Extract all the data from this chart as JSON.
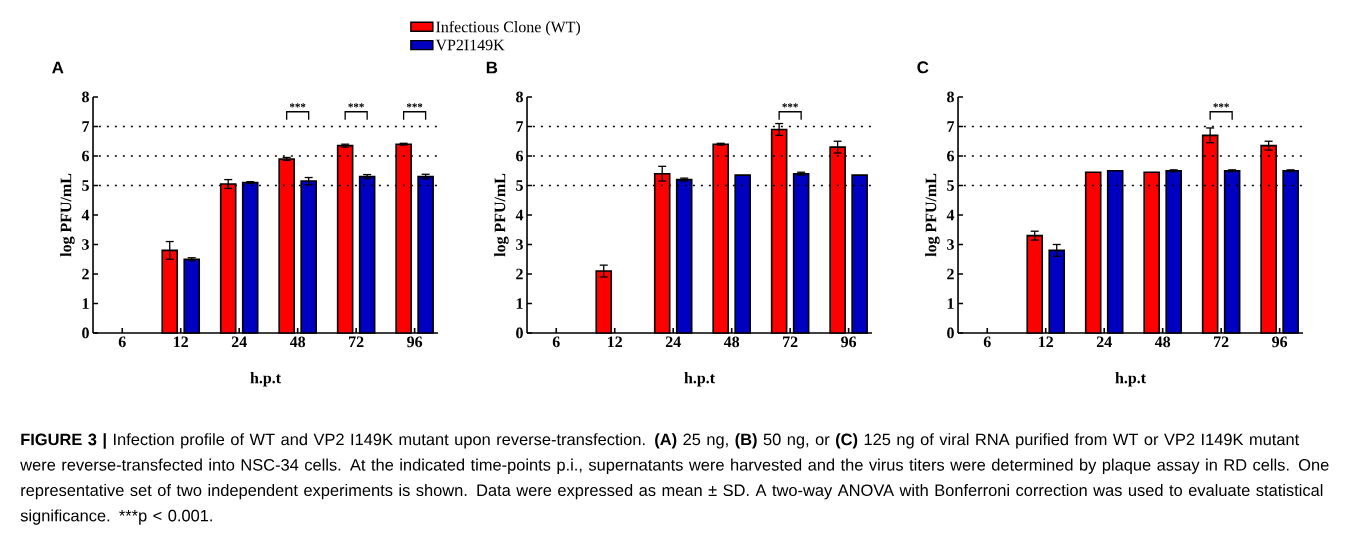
{
  "chart_data": [
    {
      "type": "bar",
      "title": "A",
      "xlabel": "h.p.t",
      "ylabel": "log PFU/mL",
      "categories": [
        "6",
        "12",
        "24",
        "48",
        "72",
        "96"
      ],
      "ylim": [
        0,
        8
      ],
      "yticks": [
        0,
        1,
        2,
        3,
        4,
        5,
        6,
        7,
        8
      ],
      "legend": "top",
      "series": [
        {
          "name": "Infectious Clone (WT)",
          "color": "#ff0000",
          "values": [
            null,
            2.8,
            5.05,
            5.9,
            6.35,
            6.4
          ],
          "errors": [
            null,
            0.3,
            0.15,
            0.05,
            0.05,
            0.03
          ]
        },
        {
          "name": "VP2I149K",
          "color": "#0000c0",
          "values": [
            null,
            2.5,
            5.1,
            5.15,
            5.3,
            5.3
          ],
          "errors": [
            null,
            0.05,
            0.03,
            0.12,
            0.07,
            0.08
          ]
        }
      ],
      "ref_lines": [
        {
          "axis": "y",
          "value": 5,
          "line_style": "dotted"
        },
        {
          "axis": "y",
          "value": 6,
          "line_style": "dotted"
        },
        {
          "axis": "y",
          "value": 7,
          "line_style": "dotted"
        }
      ],
      "annotations": [
        "***",
        "***",
        "***"
      ]
    },
    {
      "type": "bar",
      "title": "B",
      "xlabel": "h.p.t",
      "ylabel": "log PFU/mL",
      "categories": [
        "6",
        "12",
        "24",
        "48",
        "72",
        "96"
      ],
      "ylim": [
        0,
        8
      ],
      "yticks": [
        0,
        1,
        2,
        3,
        4,
        5,
        6,
        7,
        8
      ],
      "series": [
        {
          "color": "#ff0000",
          "values": [
            null,
            2.1,
            5.4,
            6.4,
            6.9,
            6.3
          ],
          "errors": [
            null,
            0.2,
            0.25,
            0.03,
            0.2,
            0.2
          ]
        },
        {
          "color": "#0000c0",
          "values": [
            null,
            null,
            5.2,
            5.35,
            5.4,
            5.35
          ],
          "errors": [
            null,
            null,
            0.05,
            null,
            0.05,
            null
          ]
        }
      ],
      "ref_lines": [
        {
          "axis": "y",
          "value": 5,
          "line_style": "dotted"
        },
        {
          "axis": "y",
          "value": 6,
          "line_style": "dotted"
        },
        {
          "axis": "y",
          "value": 7,
          "line_style": "dotted"
        }
      ],
      "annotations": [
        "***"
      ]
    },
    {
      "type": "bar",
      "title": "C",
      "xlabel": "h.p.t",
      "ylabel": "log PFU/mL",
      "categories": [
        "6",
        "12",
        "24",
        "48",
        "72",
        "96"
      ],
      "ylim": [
        0,
        8
      ],
      "yticks": [
        0,
        1,
        2,
        3,
        4,
        5,
        6,
        7,
        8
      ],
      "series": [
        {
          "color": "#ff0000",
          "values": [
            null,
            3.3,
            5.45,
            5.45,
            6.7,
            6.35
          ],
          "errors": [
            null,
            0.15,
            null,
            null,
            0.25,
            0.15
          ]
        },
        {
          "color": "#0000c0",
          "values": [
            null,
            2.8,
            5.5,
            5.5,
            5.5,
            5.5
          ],
          "errors": [
            null,
            0.2,
            null,
            0.03,
            0.03,
            0.03
          ]
        }
      ],
      "ref_lines": [
        {
          "axis": "y",
          "value": 5,
          "line_style": "dotted"
        },
        {
          "axis": "y",
          "value": 6,
          "line_style": "dotted"
        },
        {
          "axis": "y",
          "value": 7,
          "line_style": "dotted"
        }
      ],
      "annotations": [
        "***",
        "**FIGURE 3 |** Infection profile of WT and VP2 I149K mutant upon reverse-transfection. **(A)** 25 ng, **(B)** 50 ng, or **(C)** 125 ng of viral RNA purified from WT or VP2 I149K mutant were reverse-transfected into NSC-34 cells. At the indicated time-points p.i., supernatants were harvested and the virus titers were determined by plaque assay in RD cells. One representative set of two independent experiments is shown. Data were expressed as mean ± SD. A two-way ANOVA with Bonferroni correction was used to evaluate statistical significance. ***p < 0.001."
      ]
    }
  ]
}
